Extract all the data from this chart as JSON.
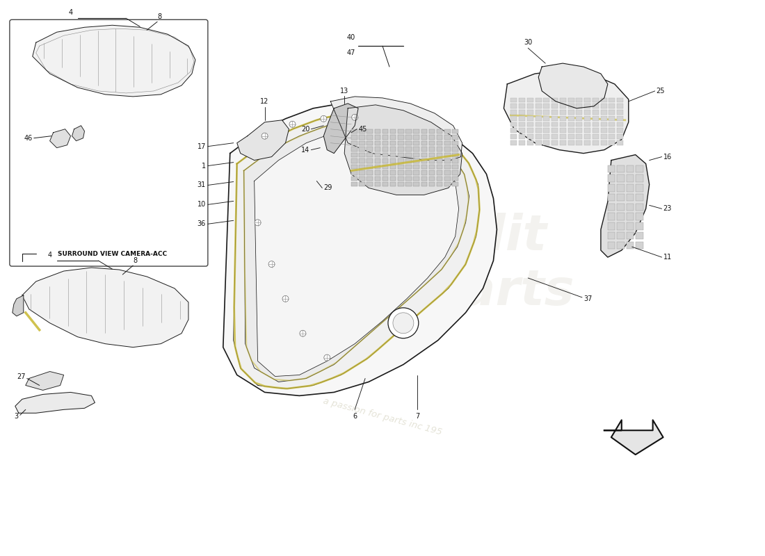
{
  "bg_color": "#ffffff",
  "line_color": "#1a1a1a",
  "label_color": "#111111",
  "yellow_accent": "#c8b830",
  "inset_border_color": "#444444",
  "inset_label": "SURROUND VIEW CAMERA-ACC",
  "watermark_text": "a passion for parts inc 195"
}
